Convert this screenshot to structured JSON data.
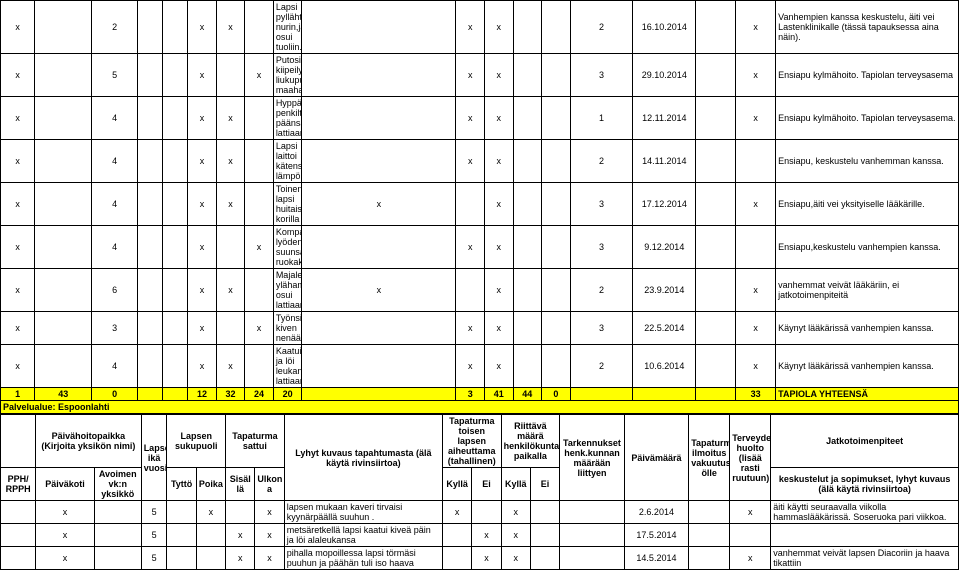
{
  "rows1": [
    {
      "c": [
        "x",
        "",
        "2",
        "",
        "",
        "x",
        "x",
        "",
        "Lapsi pyllähti nurin,jalka osui tuoliin.",
        "",
        "x",
        "x",
        "",
        "",
        "2",
        "16.10.2014",
        "",
        "x",
        "Vanhempien kanssa keskustelu, äiti vei Lastenklinikalle (tässä tapauksessa aina näin)."
      ]
    },
    {
      "c": [
        "x",
        "",
        "5",
        "",
        "",
        "x",
        "",
        "x",
        "Putosi kiipeilytelineen liukuputkesta maahan.",
        "",
        "x",
        "x",
        "",
        "",
        "3",
        "29.10.2014",
        "",
        "x",
        "Ensiapu kylmähoito. Tapiolan terveysasema"
      ]
    },
    {
      "c": [
        "x",
        "",
        "4",
        "",
        "",
        "x",
        "x",
        "",
        "Hyppäsi penkiltä,löi päänsä lattiaan.",
        "",
        "x",
        "x",
        "",
        "",
        "1",
        "12.11.2014",
        "",
        "x",
        "Ensiapu kylmähoito. Tapiolan terveysasema."
      ]
    },
    {
      "c": [
        "x",
        "",
        "4",
        "",
        "",
        "x",
        "x",
        "",
        "Lapsi laittoi kätensä lämpölevylle.",
        "",
        "x",
        "x",
        "",
        "",
        "2",
        "14.11.2014",
        "",
        "",
        "Ensiapu, keskustelu vanhemman kanssa."
      ]
    },
    {
      "c": [
        "x",
        "",
        "4",
        "",
        "",
        "x",
        "x",
        "",
        "Toinen lapsi huitaisi korilla",
        "x",
        "",
        "x",
        "",
        "",
        "3",
        "17.12.2014",
        "",
        "x",
        "Ensiapu,äiti vei yksityiselle lääkärille."
      ]
    },
    {
      "c": [
        "x",
        "",
        "4",
        "",
        "",
        "x",
        "",
        "x",
        "Kompastui lyöden suunsa ruokakärryyn.",
        "",
        "x",
        "x",
        "",
        "",
        "3",
        "9.12.2014",
        "",
        "",
        "Ensiapu,keskustelu vanhempien kanssa."
      ]
    },
    {
      "c": [
        "x",
        "",
        "6",
        "",
        "",
        "x",
        "x",
        "",
        "Majaleikissä ylähammas osui lattiaan.",
        "x",
        "",
        "x",
        "",
        "",
        "2",
        "23.9.2014",
        "",
        "x",
        "vanhemmat veivät lääkäriin, ei jatkotoimenpiteitä"
      ]
    },
    {
      "c": [
        "x",
        "",
        "3",
        "",
        "",
        "x",
        "",
        "x",
        "Työnsi kiven nenään.",
        "",
        "x",
        "x",
        "",
        "",
        "3",
        "22.5.2014",
        "",
        "x",
        "Käynyt lääkärissä vanhempien kanssa."
      ]
    },
    {
      "c": [
        "x",
        "",
        "4",
        "",
        "",
        "x",
        "x",
        "",
        "Kaatui ja löi leukansa lattiaan",
        "",
        "x",
        "x",
        "",
        "",
        "2",
        "10.6.2014",
        "",
        "x",
        "Käynyt lääkärissä vanhempien kanssa."
      ]
    }
  ],
  "sum": {
    "c": [
      "1",
      "43",
      "0",
      "",
      "",
      "12",
      "32",
      "24",
      "20",
      "",
      "3",
      "41",
      "44",
      "0",
      "",
      "",
      "",
      "33",
      "TAPIOLA YHTEENSÄ"
    ]
  },
  "section": "Palvelualue: Espoonlahti",
  "hdr": {
    "r1": [
      "",
      "Päivähoitopaikka\n(Kirjoita yksikön nimi)",
      "",
      "Lapsen ikä vuosina",
      "Lapsen sukupuoli",
      "",
      "Tapaturma sattui",
      "",
      "Lyhyt kuvaus tapahtumasta (älä käytä rivinsiirtoa)",
      "Tapaturma toisen lapsen aiheuttama (tahallinen)",
      "",
      "Riittävä määrä henkilökuntaa paikalla",
      "",
      "Tarkennukset henk.kunnan määrään liittyen",
      "Päivämäärä",
      "Tapaturma-ilmoitus vakuutusyhti ölle",
      "Terveyden huolto (lisää rasti ruutuun)",
      "Jatkotoimenpiteet"
    ],
    "r2": [
      "PPH/ RPPH",
      "Päiväkoti",
      "Avoimen vk:n yksikkö",
      "",
      "Tyttö",
      "Poika",
      "Sisäl lä",
      "Ulkon a",
      "",
      "Kyllä",
      "Ei",
      "Kyllä",
      "Ei",
      "",
      "",
      "",
      "",
      "keskustelut ja sopimukset, lyhyt kuvaus (älä käytä rivinsiirtoa)"
    ]
  },
  "rows2": [
    {
      "c": [
        "",
        "x",
        "",
        "5",
        "",
        "x",
        "",
        "x",
        "lapsen mukaan kaveri tirvaisi kyynärpäällä suuhun .",
        "x",
        "",
        "x",
        "",
        "",
        "2.6.2014",
        "",
        "x",
        "äiti käytti seuraavalla viikolla hammaslääkärissä. Soseruoka pari viikkoa."
      ]
    },
    {
      "c": [
        "",
        "x",
        "",
        "5",
        "",
        "",
        "x",
        "x",
        "metsäretkellä lapsi kaatui kiveä päin ja löi alaleukansa",
        "",
        "x",
        "x",
        "",
        "",
        "17.5.2014",
        "",
        "",
        ""
      ]
    },
    {
      "c": [
        "",
        "x",
        "",
        "5",
        "",
        "",
        "x",
        "x",
        "pihalla mopoillessa lapsi törmäsi puuhun ja päähän tuli iso haava",
        "",
        "x",
        "x",
        "",
        "",
        "14.5.2014",
        "",
        "x",
        "vanhemmat veivät lapsen Diacoriin ja haava tikattiin"
      ]
    }
  ],
  "colw": [
    "30",
    "50",
    "40",
    "22",
    "22",
    "25",
    "25",
    "25",
    "25",
    "135",
    "25",
    "25",
    "25",
    "25",
    "55",
    "55",
    "35",
    "35",
    "160"
  ]
}
